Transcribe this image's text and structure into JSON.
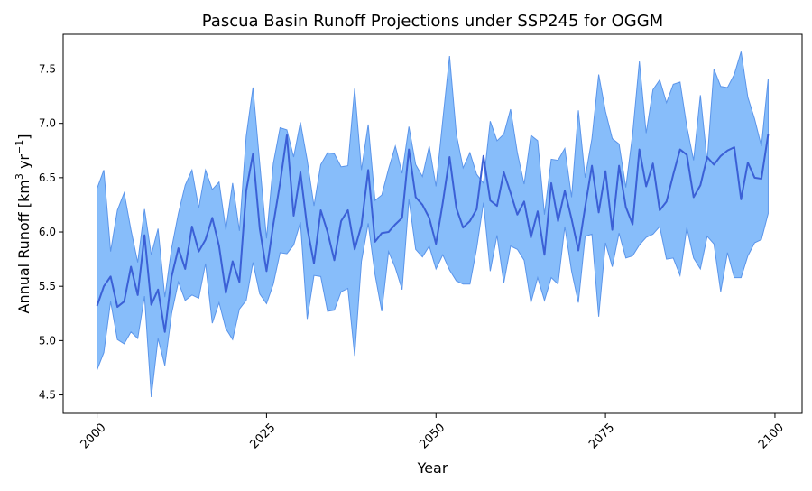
{
  "chart_data": {
    "type": "area",
    "title": "Pascua Basin Runoff Projections under SSP245 for OGGM",
    "xlabel": "Year",
    "ylabel": "Annual Runoff [km³ yr⁻¹]",
    "ylabel_parts": {
      "main": "Annual Runoff [km",
      "sup1": "3",
      "mid": " yr",
      "sup2": "−1",
      "end": "]"
    },
    "xlim": [
      1995,
      2104
    ],
    "ylim": [
      4.33,
      7.82
    ],
    "x_ticks": [
      2000,
      2025,
      2050,
      2075,
      2100
    ],
    "y_ticks": [
      4.5,
      5.0,
      5.5,
      6.0,
      6.5,
      7.0,
      7.5
    ],
    "grid": false,
    "colors": {
      "band_fill": "#87bdfa",
      "band_edge": "#5b95ea",
      "mean_line": "#3b60d6"
    },
    "x": [
      2000,
      2001,
      2002,
      2003,
      2004,
      2005,
      2006,
      2007,
      2008,
      2009,
      2010,
      2011,
      2012,
      2013,
      2014,
      2015,
      2016,
      2017,
      2018,
      2019,
      2020,
      2021,
      2022,
      2023,
      2024,
      2025,
      2026,
      2027,
      2028,
      2029,
      2030,
      2031,
      2032,
      2033,
      2034,
      2035,
      2036,
      2037,
      2038,
      2039,
      2040,
      2041,
      2042,
      2043,
      2044,
      2045,
      2046,
      2047,
      2048,
      2049,
      2050,
      2051,
      2052,
      2053,
      2054,
      2055,
      2056,
      2057,
      2058,
      2059,
      2060,
      2061,
      2062,
      2063,
      2064,
      2065,
      2066,
      2067,
      2068,
      2069,
      2070,
      2071,
      2072,
      2073,
      2074,
      2075,
      2076,
      2077,
      2078,
      2079,
      2080,
      2081,
      2082,
      2083,
      2084,
      2085,
      2086,
      2087,
      2088,
      2089,
      2090,
      2091,
      2092,
      2093,
      2094,
      2095,
      2096,
      2097,
      2098,
      2099
    ],
    "series": [
      {
        "name": "",
        "upper": [
          6.4,
          6.57,
          5.82,
          6.2,
          6.36,
          6.02,
          5.72,
          6.21,
          5.79,
          6.03,
          5.4,
          5.85,
          6.17,
          6.43,
          6.57,
          6.22,
          6.57,
          6.39,
          6.46,
          6.02,
          6.45,
          6.01,
          6.88,
          7.33,
          6.63,
          5.94,
          6.63,
          6.96,
          6.94,
          6.69,
          7.01,
          6.66,
          6.24,
          6.62,
          6.73,
          6.72,
          6.6,
          6.61,
          7.32,
          6.57,
          6.99,
          6.29,
          6.34,
          6.58,
          6.79,
          6.54,
          6.97,
          6.62,
          6.51,
          6.79,
          6.42,
          7.03,
          7.62,
          6.9,
          6.59,
          6.73,
          6.53,
          6.45,
          7.02,
          6.84,
          6.9,
          7.13,
          6.73,
          6.44,
          6.89,
          6.84,
          6.16,
          6.67,
          6.66,
          6.77,
          6.32,
          7.12,
          6.5,
          6.86,
          7.45,
          7.11,
          6.86,
          6.81,
          6.41,
          6.9,
          7.57,
          6.91,
          7.31,
          7.4,
          7.19,
          7.36,
          7.38,
          6.97,
          6.66,
          7.26,
          6.65,
          7.5,
          7.34,
          7.33,
          7.45,
          7.66,
          7.24,
          7.04,
          6.79,
          7.41
        ],
        "lower": [
          4.73,
          4.89,
          5.36,
          5.01,
          4.97,
          5.08,
          5.02,
          5.41,
          4.48,
          5.02,
          4.77,
          5.25,
          5.54,
          5.37,
          5.42,
          5.39,
          5.71,
          5.16,
          5.35,
          5.11,
          5.01,
          5.29,
          5.37,
          5.72,
          5.43,
          5.34,
          5.52,
          5.81,
          5.8,
          5.88,
          6.09,
          5.2,
          5.6,
          5.59,
          5.27,
          5.28,
          5.45,
          5.48,
          4.86,
          5.73,
          6.08,
          5.61,
          5.27,
          5.82,
          5.67,
          5.47,
          6.3,
          5.84,
          5.77,
          5.87,
          5.66,
          5.79,
          5.65,
          5.55,
          5.52,
          5.52,
          5.85,
          6.27,
          5.64,
          5.97,
          5.53,
          5.87,
          5.84,
          5.74,
          5.35,
          5.58,
          5.37,
          5.58,
          5.52,
          6.05,
          5.64,
          5.35,
          5.96,
          5.98,
          5.22,
          5.9,
          5.68,
          5.99,
          5.76,
          5.78,
          5.88,
          5.95,
          5.98,
          6.05,
          5.75,
          5.76,
          5.6,
          6.04,
          5.76,
          5.66,
          5.96,
          5.89,
          5.45,
          5.81,
          5.58,
          5.58,
          5.78,
          5.9,
          5.93,
          6.17
        ],
        "values": [
          5.32,
          5.5,
          5.59,
          5.31,
          5.36,
          5.68,
          5.42,
          5.97,
          5.33,
          5.47,
          5.08,
          5.59,
          5.85,
          5.66,
          6.05,
          5.82,
          5.93,
          6.13,
          5.87,
          5.44,
          5.73,
          5.54,
          6.38,
          6.72,
          6.03,
          5.64,
          6.07,
          6.45,
          6.89,
          6.15,
          6.55,
          6.04,
          5.71,
          6.2,
          6.0,
          5.74,
          6.1,
          6.2,
          5.84,
          6.06,
          6.57,
          5.91,
          5.99,
          6.0,
          6.07,
          6.13,
          6.76,
          6.32,
          6.25,
          6.13,
          5.89,
          6.27,
          6.69,
          6.22,
          6.04,
          6.1,
          6.21,
          6.7,
          6.29,
          6.24,
          6.55,
          6.36,
          6.16,
          6.28,
          5.95,
          6.19,
          5.79,
          6.45,
          6.1,
          6.38,
          6.12,
          5.83,
          6.23,
          6.61,
          6.18,
          6.56,
          6.02,
          6.61,
          6.23,
          6.07,
          6.76,
          6.42,
          6.63,
          6.2,
          6.28,
          6.53,
          6.76,
          6.71,
          6.32,
          6.43,
          6.69,
          6.62,
          6.7,
          6.75,
          6.78,
          6.3,
          6.64,
          6.5,
          6.49,
          6.9
        ]
      }
    ]
  }
}
